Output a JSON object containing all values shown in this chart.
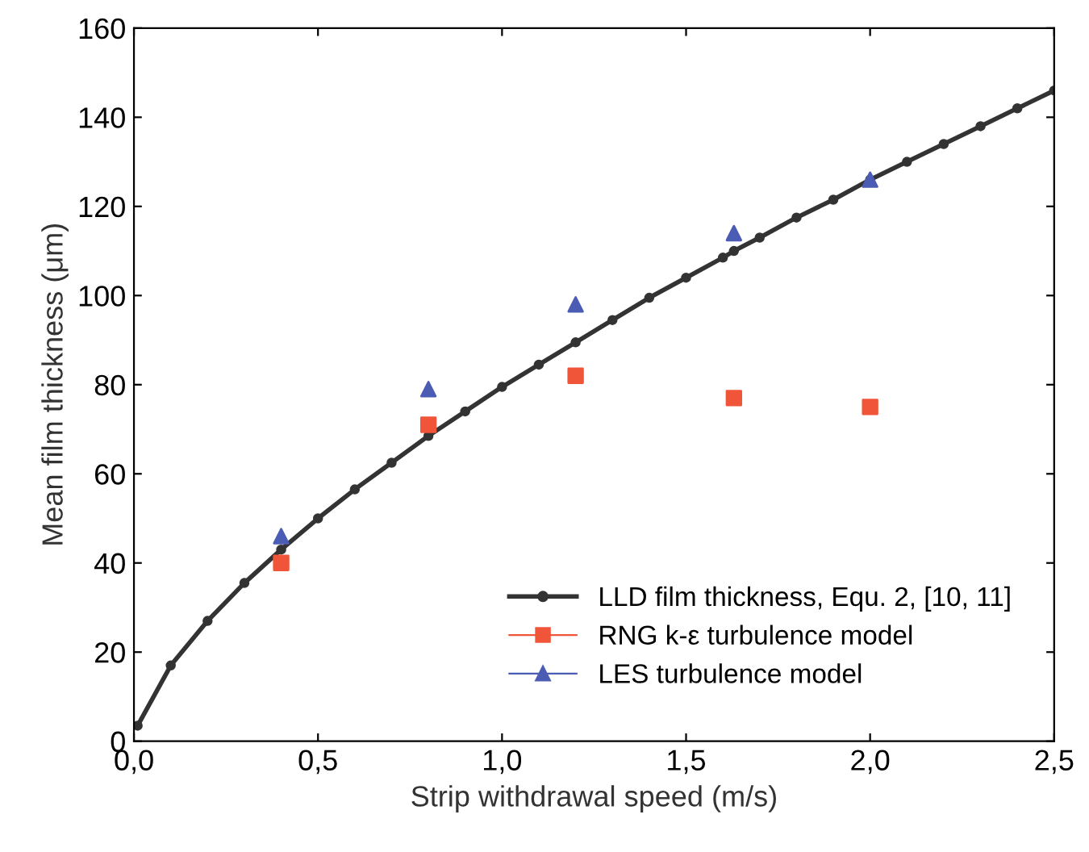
{
  "chart_data": {
    "type": "line",
    "xlabel": "Strip withdrawal speed (m/s)",
    "ylabel": "Mean film thickness (μm)",
    "xlim": [
      0,
      2.5
    ],
    "ylim": [
      0,
      160
    ],
    "xticks": [
      {
        "value": 0,
        "label": "0,0"
      },
      {
        "value": 0.5,
        "label": "0,5"
      },
      {
        "value": 1.0,
        "label": "1,0"
      },
      {
        "value": 1.5,
        "label": "1,5"
      },
      {
        "value": 2.0,
        "label": "2,0"
      },
      {
        "value": 2.5,
        "label": "2,5"
      }
    ],
    "yticks": [
      0,
      20,
      40,
      60,
      80,
      100,
      120,
      140,
      160
    ],
    "grid": false,
    "legend": "bottom right",
    "series": [
      {
        "name": "LLD film thickness, Equ. 2, [10, 11]",
        "marker": "circle",
        "color": "#333333",
        "x": [
          0.01,
          0.1,
          0.2,
          0.3,
          0.4,
          0.5,
          0.6,
          0.7,
          0.8,
          0.9,
          1.0,
          1.1,
          1.2,
          1.3,
          1.4,
          1.5,
          1.6,
          1.63,
          1.7,
          1.8,
          1.9,
          2.0,
          2.1,
          2.2,
          2.3,
          2.4,
          2.5
        ],
        "values": [
          3.5,
          17,
          27,
          35.5,
          43,
          50,
          56.5,
          62.5,
          68.5,
          74,
          79.5,
          84.5,
          89.5,
          94.5,
          99.5,
          104,
          108.5,
          110,
          113,
          117.5,
          121.5,
          126,
          130,
          134,
          138,
          142,
          146
        ]
      },
      {
        "name": "RNG k-ε turbulence model",
        "type": "scatter",
        "marker": "square",
        "color": "#f0553a",
        "x": [
          0.4,
          0.8,
          1.2,
          1.63,
          2.0
        ],
        "values": [
          40,
          71,
          82,
          77,
          75
        ]
      },
      {
        "name": "LES turbulence model",
        "type": "scatter",
        "marker": "triangle",
        "color": "#4a5cb3",
        "x": [
          0.4,
          0.8,
          1.2,
          1.63,
          2.0
        ],
        "values": [
          46,
          79,
          98,
          114,
          126
        ]
      }
    ]
  }
}
